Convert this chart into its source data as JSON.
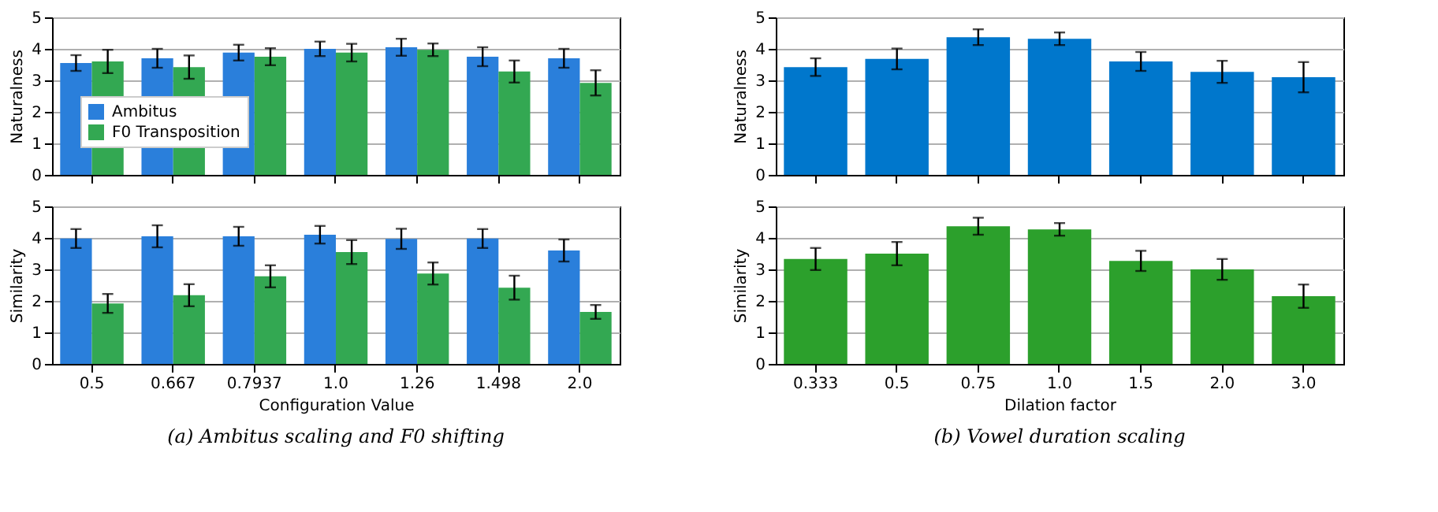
{
  "chart_data": [
    {
      "type": "bar",
      "ylabel": "Naturalness",
      "categories": [
        "0.5",
        "0.667",
        "0.7937",
        "1.0",
        "1.26",
        "1.498",
        "2.0"
      ],
      "ylim": [
        0,
        5
      ],
      "yticks": [
        0,
        1,
        2,
        3,
        4,
        5
      ],
      "grid": "y",
      "legend": "bottom left",
      "tick_labels": "y",
      "series": [
        {
          "name": "Ambitus",
          "color": "#2a7fdb",
          "values": [
            3.55,
            3.7,
            3.88,
            4.0,
            4.05,
            3.75,
            3.7
          ],
          "errors": [
            0.25,
            0.3,
            0.25,
            0.23,
            0.27,
            0.3,
            0.3
          ]
        },
        {
          "name": "F0 Transposition",
          "color": "#33a852",
          "values": [
            3.6,
            3.42,
            3.75,
            3.88,
            3.97,
            3.28,
            2.92
          ],
          "errors": [
            0.37,
            0.37,
            0.27,
            0.28,
            0.2,
            0.35,
            0.4
          ]
        }
      ]
    },
    {
      "type": "bar",
      "ylabel": "Similarity",
      "xlabel": "Configuration Value",
      "categories": [
        "0.5",
        "0.667",
        "0.7937",
        "1.0",
        "1.26",
        "1.498",
        "2.0"
      ],
      "ylim": [
        0,
        5
      ],
      "yticks": [
        0,
        1,
        2,
        3,
        4,
        5
      ],
      "grid": "y",
      "annotations": [
        "(a) Ambitus scaling and F0 shifting"
      ],
      "series": [
        {
          "color": "#2a7fdb",
          "values": [
            3.98,
            4.05,
            4.05,
            4.1,
            3.97,
            3.98,
            3.6
          ],
          "errors": [
            0.3,
            0.35,
            0.3,
            0.28,
            0.32,
            0.3,
            0.35
          ]
        },
        {
          "color": "#33a852",
          "values": [
            1.92,
            2.18,
            2.78,
            3.55,
            2.87,
            2.42,
            1.65
          ],
          "errors": [
            0.3,
            0.35,
            0.35,
            0.38,
            0.35,
            0.38,
            0.22
          ]
        }
      ]
    },
    {
      "type": "bar",
      "ylabel": "Naturalness",
      "categories": [
        "0.333",
        "0.5",
        "0.75",
        "1.0",
        "1.5",
        "2.0",
        "3.0"
      ],
      "ylim": [
        0,
        5
      ],
      "yticks": [
        0,
        1,
        2,
        3,
        4,
        5
      ],
      "grid": "y",
      "tick_labels": "y",
      "series": [
        {
          "color": "#0077cc",
          "values": [
            3.42,
            3.68,
            4.37,
            4.32,
            3.6,
            3.27,
            3.1
          ],
          "errors": [
            0.28,
            0.33,
            0.25,
            0.2,
            0.3,
            0.35,
            0.48
          ]
        }
      ]
    },
    {
      "type": "bar",
      "ylabel": "Similarity",
      "xlabel": "Dilation factor",
      "categories": [
        "0.333",
        "0.5",
        "0.75",
        "1.0",
        "1.5",
        "2.0",
        "3.0"
      ],
      "ylim": [
        0,
        5
      ],
      "yticks": [
        0,
        1,
        2,
        3,
        4,
        5
      ],
      "grid": "y",
      "annotations": [
        "(b) Vowel duration scaling"
      ],
      "series": [
        {
          "color": "#2ca02c",
          "values": [
            3.33,
            3.5,
            4.37,
            4.27,
            3.27,
            3.0,
            2.15
          ],
          "errors": [
            0.35,
            0.37,
            0.27,
            0.2,
            0.32,
            0.33,
            0.37
          ]
        }
      ]
    }
  ]
}
